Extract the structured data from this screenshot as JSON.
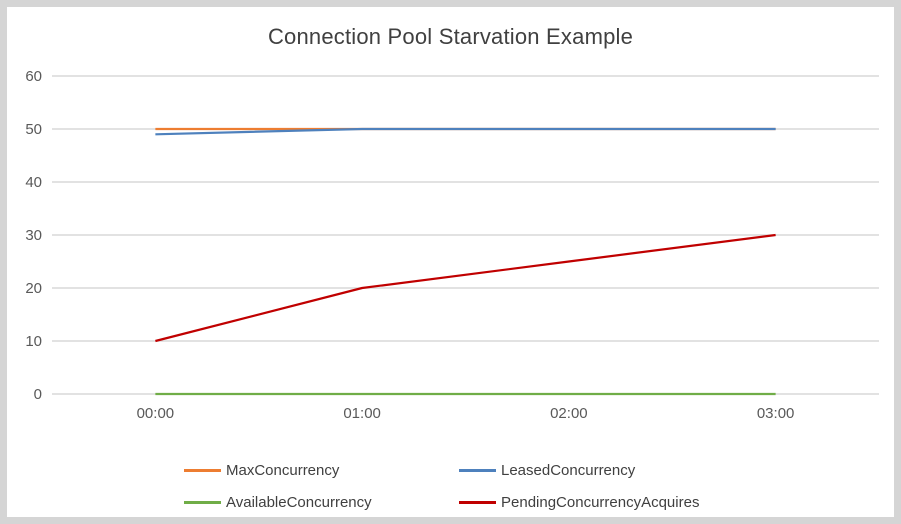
{
  "chart_data": {
    "type": "line",
    "title": "Connection Pool Starvation Example",
    "categories": [
      "00:00",
      "01:00",
      "02:00",
      "03:00"
    ],
    "series": [
      {
        "name": "MaxConcurrency",
        "color": "#ED7D31",
        "values": [
          50,
          50,
          50,
          50
        ]
      },
      {
        "name": "LeasedConcurrency",
        "color": "#4E81BD",
        "values": [
          49,
          50,
          50,
          50
        ]
      },
      {
        "name": "AvailableConcurrency",
        "color": "#70AD47",
        "values": [
          0,
          0,
          0,
          0
        ]
      },
      {
        "name": "PendingConcurrencyAcquires",
        "color": "#C00000",
        "values": [
          10,
          20,
          25,
          30
        ]
      }
    ],
    "yticks": [
      0,
      10,
      20,
      30,
      40,
      50,
      60
    ],
    "ylim": [
      0,
      60
    ],
    "xlabel": "",
    "ylabel": "",
    "grid": true,
    "legend_position": "bottom",
    "legend_order": [
      "MaxConcurrency",
      "LeasedConcurrency",
      "AvailableConcurrency",
      "PendingConcurrencyAcquires"
    ]
  },
  "colors": {
    "frame_border": "#d5d5d5",
    "background": "#ffffff",
    "gridline": "#d9d9d9",
    "tick_label": "#595959",
    "title_text": "#404040",
    "legend_text": "#404040"
  }
}
